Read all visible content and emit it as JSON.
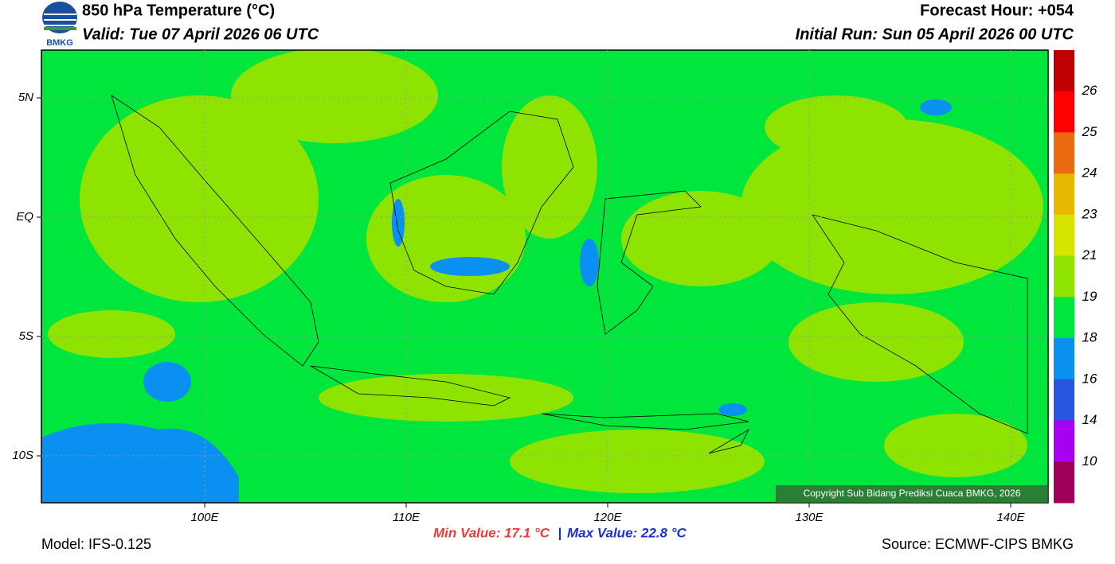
{
  "header": {
    "title": "850 hPa Temperature (°C)",
    "valid": "Valid: Tue 07 April 2026 06 UTC",
    "forecast_hour": "Forecast Hour: +054",
    "initial_run": "Initial Run: Sun 05 April 2026 00 UTC",
    "logo_text": "BMKG"
  },
  "map": {
    "lat_labels": [
      "5N",
      "EQ",
      "5S",
      "10S"
    ],
    "lon_labels": [
      "100E",
      "110E",
      "120E",
      "130E",
      "140E"
    ],
    "copyright": "Copyright Sub Bidang Prediksi Cuaca BMKG, 2026"
  },
  "colorbar": {
    "colors": [
      "#c00000",
      "#ff0000",
      "#ec6a10",
      "#e8b800",
      "#d6e400",
      "#8ee400",
      "#00e63c",
      "#0a90f0",
      "#2a55e0",
      "#a800f0",
      "#a0005a"
    ],
    "labels": [
      26,
      25,
      24,
      23,
      21,
      19,
      18,
      16,
      14,
      10
    ]
  },
  "footer": {
    "model": "Model: IFS-0.125",
    "min_value": "Min Value: 17.1 °C",
    "separator": "|",
    "max_value": "Max Value: 22.8 °C",
    "source": "Source: ECMWF-CIPS BMKG"
  }
}
